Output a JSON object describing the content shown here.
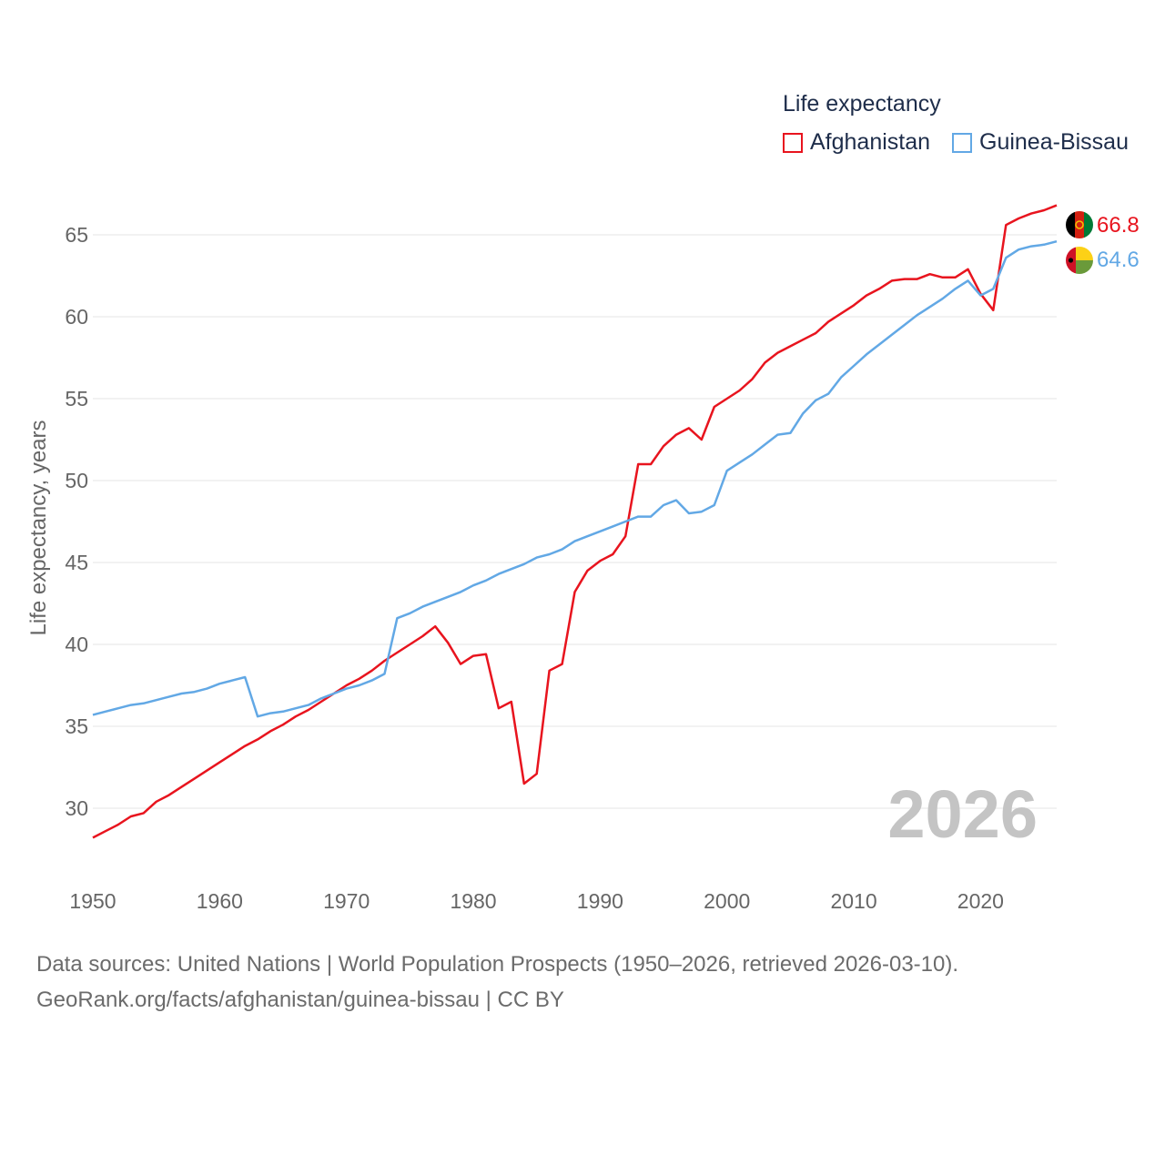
{
  "legend": {
    "title": "Life expectancy",
    "items": [
      {
        "name": "Afghanistan",
        "color": "#e8141e"
      },
      {
        "name": "Guinea-Bissau",
        "color": "#62a8e5"
      }
    ]
  },
  "chart_data": {
    "type": "line",
    "title": "Life expectancy",
    "xlabel": "",
    "ylabel": "Life expectancy, years",
    "xlim": [
      1950,
      2026
    ],
    "ylim": [
      26,
      68.5
    ],
    "x_ticks": [
      1950,
      1960,
      1970,
      1980,
      1990,
      2000,
      2010,
      2020
    ],
    "y_ticks": [
      30,
      35,
      40,
      45,
      50,
      55,
      60,
      65
    ],
    "grid": true,
    "legend_position": "top-right",
    "year_label": "2026",
    "x": [
      1950,
      1951,
      1952,
      1953,
      1954,
      1955,
      1956,
      1957,
      1958,
      1959,
      1960,
      1961,
      1962,
      1963,
      1964,
      1965,
      1966,
      1967,
      1968,
      1969,
      1970,
      1971,
      1972,
      1973,
      1974,
      1975,
      1976,
      1977,
      1978,
      1979,
      1980,
      1981,
      1982,
      1983,
      1984,
      1985,
      1986,
      1987,
      1988,
      1989,
      1990,
      1991,
      1992,
      1993,
      1994,
      1995,
      1996,
      1997,
      1998,
      1999,
      2000,
      2001,
      2002,
      2003,
      2004,
      2005,
      2006,
      2007,
      2008,
      2009,
      2010,
      2011,
      2012,
      2013,
      2014,
      2015,
      2016,
      2017,
      2018,
      2019,
      2020,
      2021,
      2022,
      2023,
      2024,
      2025,
      2026
    ],
    "series": [
      {
        "name": "Afghanistan",
        "color": "#e8141e",
        "end_label": "66.8",
        "values": [
          28.2,
          28.6,
          29.0,
          29.5,
          29.7,
          30.4,
          30.8,
          31.3,
          31.8,
          32.3,
          32.8,
          33.3,
          33.8,
          34.2,
          34.7,
          35.1,
          35.6,
          36.0,
          36.5,
          37.0,
          37.5,
          37.9,
          38.4,
          39.0,
          39.5,
          40.0,
          40.5,
          41.1,
          40.1,
          38.8,
          39.3,
          39.4,
          36.1,
          36.5,
          31.5,
          32.1,
          38.4,
          38.8,
          43.2,
          44.5,
          45.1,
          45.5,
          46.6,
          51.0,
          51.0,
          52.1,
          52.8,
          53.2,
          52.5,
          54.5,
          55.0,
          55.5,
          56.2,
          57.2,
          57.8,
          58.2,
          58.6,
          59.0,
          59.7,
          60.2,
          60.7,
          61.3,
          61.7,
          62.2,
          62.3,
          62.3,
          62.6,
          62.4,
          62.4,
          62.9,
          61.4,
          60.4,
          65.6,
          66.0,
          66.3,
          66.5,
          66.8
        ]
      },
      {
        "name": "Guinea-Bissau",
        "color": "#62a8e5",
        "end_label": "64.6",
        "values": [
          35.7,
          35.9,
          36.1,
          36.3,
          36.4,
          36.6,
          36.8,
          37.0,
          37.1,
          37.3,
          37.6,
          37.8,
          38.0,
          35.6,
          35.8,
          35.9,
          36.1,
          36.3,
          36.7,
          37.0,
          37.3,
          37.5,
          37.8,
          38.2,
          41.6,
          41.9,
          42.3,
          42.6,
          42.9,
          43.2,
          43.6,
          43.9,
          44.3,
          44.6,
          44.9,
          45.3,
          45.5,
          45.8,
          46.3,
          46.6,
          46.9,
          47.2,
          47.5,
          47.8,
          47.8,
          48.5,
          48.8,
          48.0,
          48.1,
          48.5,
          50.6,
          51.1,
          51.6,
          52.2,
          52.8,
          52.9,
          54.1,
          54.9,
          55.3,
          56.3,
          57.0,
          57.7,
          58.3,
          58.9,
          59.5,
          60.1,
          60.6,
          61.1,
          61.7,
          62.2,
          61.3,
          61.7,
          63.6,
          64.1,
          64.3,
          64.4,
          64.6
        ]
      }
    ]
  },
  "footer": {
    "line1": "Data sources: United Nations | World Population Prospects (1950–2026, retrieved 2026-03-10).",
    "line2": "GeoRank.org/facts/afghanistan/guinea-bissau | CC BY"
  }
}
